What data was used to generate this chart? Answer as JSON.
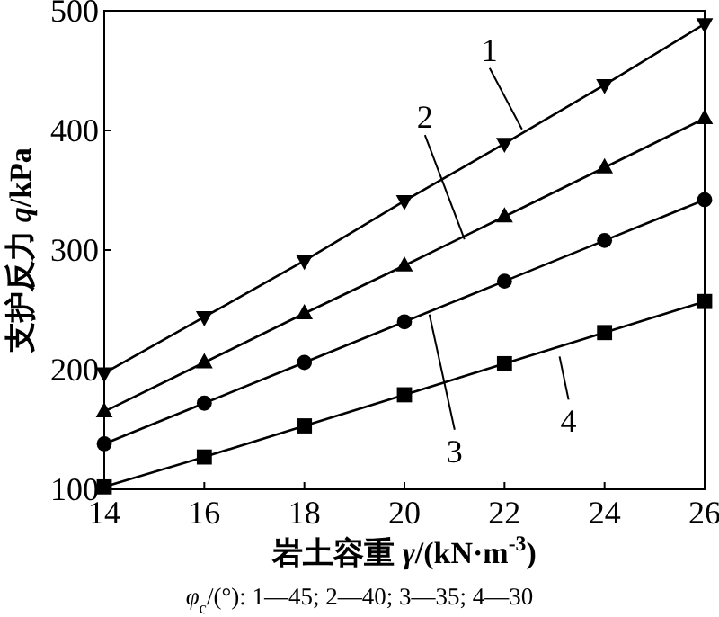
{
  "chart_data": {
    "type": "line",
    "xlabel": "岩土容重 *γ*/(kN·m$^{-3}$)",
    "ylabel": "支护反力 *q*/kPa",
    "x": [
      14,
      16,
      18,
      20,
      22,
      24,
      26
    ],
    "series": [
      {
        "color": "#000000",
        "marker": "triangle-down",
        "values": [
          197,
          244,
          291,
          341,
          389,
          438,
          489
        ]
      },
      {
        "color": "#000000",
        "marker": "triangle",
        "values": [
          165,
          206,
          247,
          287,
          328,
          369,
          410
        ]
      },
      {
        "color": "#000000",
        "marker": "circle",
        "values": [
          138,
          172,
          206,
          240,
          274,
          308,
          342
        ]
      },
      {
        "color": "#000000",
        "marker": "square",
        "values": [
          102,
          127,
          153,
          179,
          205,
          231,
          257
        ]
      }
    ],
    "xlim": [
      14,
      26
    ],
    "ylim": [
      100,
      500
    ],
    "xticks": [
      14,
      16,
      18,
      20,
      22,
      24,
      26
    ],
    "yticks": [
      100,
      200,
      300,
      400,
      500
    ],
    "grid": false,
    "line_style": "solid",
    "annotations": [
      {
        "text": "1",
        "x": 22.35,
        "y": 401
      },
      {
        "text": "2",
        "x": 21.2,
        "y": 309
      },
      {
        "text": "3",
        "x": 20.5,
        "y": 246
      },
      {
        "text": "4",
        "x": 23.1,
        "y": 211
      },
      "*φ*$_{c}$/(°): 1—45; 2—40; 3—35; 4—30"
    ]
  }
}
